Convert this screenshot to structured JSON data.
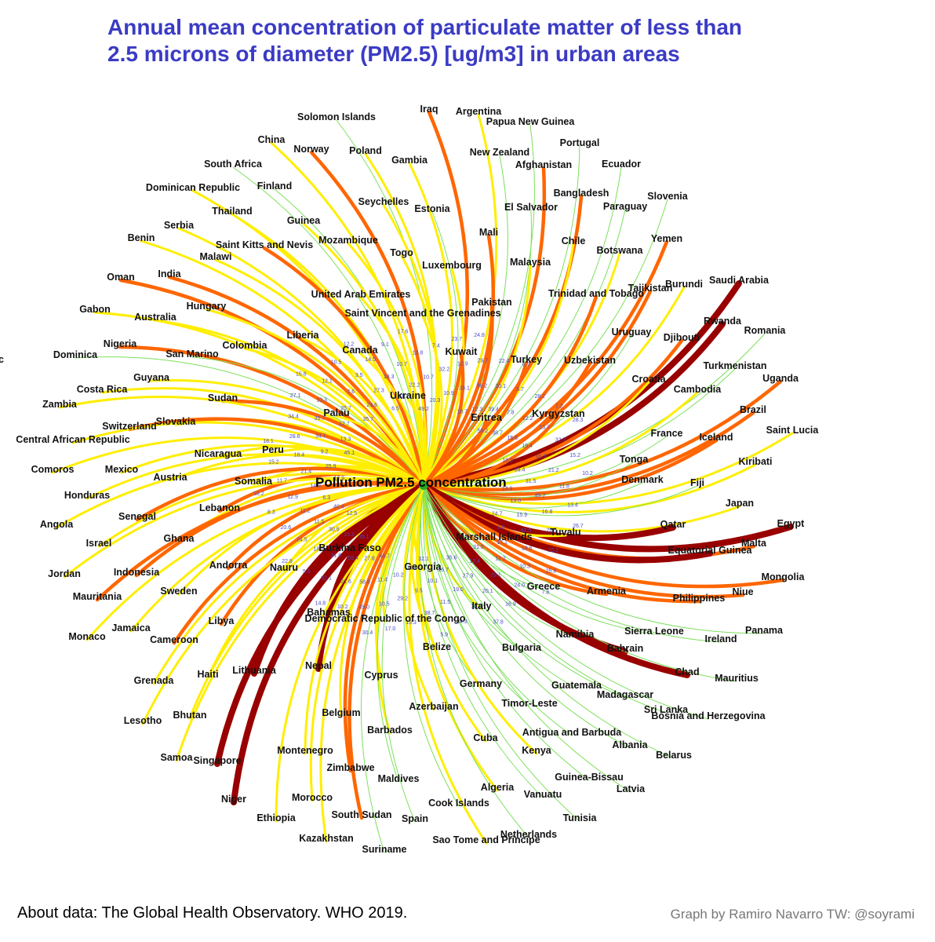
{
  "title_lines": [
    "Annual mean concentration of particulate matter of less than",
    "2.5 microns of diameter (PM2.5) [ug/m3] in urban areas"
  ],
  "center_label": "Pollution PM2.5 concentration",
  "source": "About data: The Global Health Observatory. WHO 2019.",
  "credit": "Graph by Ramiro Navarro TW: @soyrami",
  "colors": {
    "title": "#3b3bc4",
    "low": "#7ce05a",
    "mid": "#ffee00",
    "high": "#ff6600",
    "very_high": "#990000",
    "center_node": "#22aa22",
    "edge_label": "#4a4ac8"
  },
  "stray_label": "c",
  "countries": [
    "Iraq",
    "Argentina",
    "Solomon Islands",
    "Papua New Guinea",
    "China",
    "Norway",
    "Poland",
    "Portugal",
    "New Zealand",
    "Gambia",
    "Afghanistan",
    "Ecuador",
    "South Africa",
    "Dominican Republic",
    "Finland",
    "Bangladesh",
    "Slovenia",
    "Seychelles",
    "El Salvador",
    "Paraguay",
    "Thailand",
    "Estonia",
    "Guinea",
    "Serbia",
    "Mali",
    "Benin",
    "Mozambique",
    "Yemen",
    "Chile",
    "Saint Kitts and Nevis",
    "Togo",
    "Botswana",
    "Malawi",
    "Malaysia",
    "Luxembourg",
    "Oman",
    "India",
    "Burundi",
    "Saudi Arabia",
    "Tajikistan",
    "United Arab Emirates",
    "Trinidad and Tobago",
    "Pakistan",
    "Hungary",
    "Gabon",
    "Australia",
    "Saint Vincent and the Grenadines",
    "Rwanda",
    "Romania",
    "Uruguay",
    "Liberia",
    "Djibouti",
    "Nigeria",
    "Colombia",
    "Canada",
    "Kuwait",
    "Dominica",
    "San Marino",
    "Uzbekistan",
    "Turkey",
    "Turkmenistan",
    "Guyana",
    "Croatia",
    "Uganda",
    "Costa Rica",
    "Cambodia",
    "Sudan",
    "Ukraine",
    "Zambia",
    "Brazil",
    "Slovakia",
    "Palau",
    "Kyrgyzstan",
    "Eritrea",
    "Switzerland",
    "Saint Lucia",
    "Central African Republic",
    "France",
    "Iceland",
    "Nicaragua",
    "Peru",
    "Tonga",
    "Comoros",
    "Mexico",
    "Kiribati",
    "Austria",
    "Somalia",
    "Denmark",
    "Fiji",
    "Honduras",
    "Lebanon",
    "Senegal",
    "Japan",
    "Angola",
    "Ghana",
    "Qatar",
    "Egypt",
    "Tuvalu",
    "Israel",
    "Marshall Islands",
    "Malta",
    "Burkina Faso",
    "Equatorial Guinea",
    "Jordan",
    "Andorra",
    "Nauru",
    "Indonesia",
    "Georgia",
    "Mongolia",
    "Mauritania",
    "Sweden",
    "Greece",
    "Armenia",
    "Niue",
    "Philippines",
    "Bahamas",
    "Libya",
    "Democratic Republic of the Congo",
    "Italy",
    "Monaco",
    "Jamaica",
    "Sierra Leone",
    "Panama",
    "Cameroon",
    "Namibia",
    "Ireland",
    "Bahrain",
    "Belize",
    "Bulgaria",
    "Nepal",
    "Lithuania",
    "Haiti",
    "Chad",
    "Mauritius",
    "Cyprus",
    "Grenada",
    "Germany",
    "Guatemala",
    "Madagascar",
    "Sri Lanka",
    "Bosnia and Herzegovina",
    "Timor-Leste",
    "Azerbaijan",
    "Belgium",
    "Lesotho",
    "Bhutan",
    "Antigua and Barbuda",
    "Albania",
    "Barbados",
    "Cuba",
    "Belarus",
    "Samoa",
    "Singapore",
    "Montenegro",
    "Kenya",
    "Zimbabwe",
    "Guinea-Bissau",
    "Maldives",
    "Latvia",
    "Algeria",
    "Vanuatu",
    "Niger",
    "Morocco",
    "Cook Islands",
    "Tunisia",
    "Ethiopia",
    "South Sudan",
    "Spain",
    "Netherlands",
    "Kazakhstan",
    "Sao Tome and Principe",
    "Suriname"
  ],
  "edge_values": [
    "49.2",
    "10.7",
    "7.4",
    "20.3",
    "32.2",
    "23.7",
    "10.9",
    "12.9",
    "24.8",
    "33.1",
    "29.7",
    "18.7",
    "36.2",
    "22.4",
    "12.3",
    "20.1",
    "6.7",
    "39.4",
    "5.7",
    "58.2",
    "7.8",
    "28.2",
    "38.7",
    "12.2",
    "7.2",
    "15.6",
    "13.7",
    "28.3",
    "19.4",
    "32.7",
    "18.3",
    "46.5",
    "15.2",
    "39.4",
    "21.2",
    "10.2",
    "31.5",
    "11.8",
    "14.9",
    "45.2",
    "13.4",
    "13.0",
    "16.8",
    "26.7",
    "15.9",
    "20.5",
    "24.7",
    "42.5",
    "10.2",
    "9.8",
    "18.6",
    "25.8",
    "17.1",
    "10.3",
    "7.8",
    "12.2",
    "24.0",
    "21.5",
    "29.1",
    "16.9",
    "12.4",
    "20.1",
    "37.8",
    "27.9",
    "30.6",
    "35.6",
    "19.0",
    "24.3",
    "16.7",
    "11.5",
    "5.9",
    "10.1",
    "38.7",
    "32.1",
    "9.5",
    "13.3",
    "10.8",
    "29.2",
    "17.0",
    "10.2",
    "10.5",
    "30.4",
    "11.4",
    "45.0",
    "46.7",
    "58.8",
    "10.2",
    "27.8",
    "21.6",
    "14.8",
    "55.4",
    "32.1",
    "35.1",
    "31.8",
    "5.9",
    "15.3",
    "18.8",
    "22.8",
    "30.5",
    "24.5",
    "12.5",
    "11.5",
    "20.6",
    "40.4",
    "11.2",
    "8.3",
    "6.3",
    "12.9",
    "18.2",
    "14.3",
    "11.7",
    "17.9",
    "21.4",
    "15.2",
    "25.9",
    "18.4",
    "18.1",
    "9.2",
    "28.6",
    "45.1",
    "34.7",
    "34.4",
    "13.3",
    "35.7",
    "27.1",
    "12.7",
    "10.3",
    "15.8",
    "25.7",
    "12.1",
    "35.7",
    "7.6",
    "10.5",
    "23.6",
    "3.5",
    "12.2",
    "27.3",
    "14.5",
    "6.5",
    "18.3",
    "9.1",
    "11.1",
    "10.7",
    "17.6",
    "22.2",
    "13.8"
  ]
}
